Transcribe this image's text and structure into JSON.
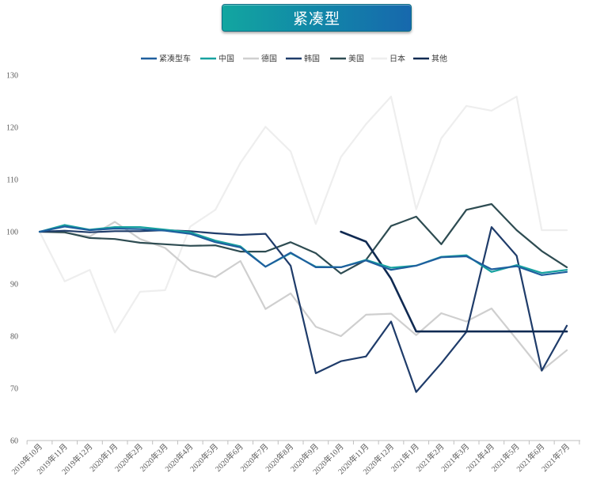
{
  "chart_data": {
    "type": "line",
    "title": "紧凑型",
    "xlabel": "",
    "ylabel": "",
    "ylim": [
      60,
      130
    ],
    "yticks": [
      60,
      70,
      80,
      90,
      100,
      110,
      120,
      130
    ],
    "grid": false,
    "legend_position": "top",
    "categories": [
      "2019年10月",
      "2019年11月",
      "2019年12月",
      "2020年1月",
      "2020年2月",
      "2020年3月",
      "2020年4月",
      "2020年5月",
      "2020年6月",
      "2020年7月",
      "2020年8月",
      "2020年9月",
      "2020年10月",
      "2020年11月",
      "2020年12月",
      "2021年1月",
      "2021年2月",
      "2021年3月",
      "2021年4月",
      "2021年5月",
      "2021年6月",
      "2021年7月"
    ],
    "series": [
      {
        "name": "紧凑型车",
        "color": "#1f5f9e",
        "width": 2.2,
        "values": [
          100,
          101,
          100.3,
          100.6,
          100.5,
          100.2,
          99.6,
          98,
          97,
          93.3,
          96,
          93.2,
          93.2,
          94.5,
          92.7,
          93.5,
          95.1,
          95.3,
          92.8,
          93.4,
          91.7,
          92.3
        ]
      },
      {
        "name": "中国",
        "color": "#17a2a0",
        "width": 2.2,
        "values": [
          100,
          101.3,
          100.4,
          100.9,
          100.9,
          100.4,
          99.9,
          98.3,
          97.2,
          93.3,
          95.9,
          93.3,
          93.2,
          94.6,
          93.1,
          93.5,
          95.2,
          95.5,
          92.3,
          93.6,
          92.1,
          92.7
        ]
      },
      {
        "name": "德国",
        "color": "#cfcfcf",
        "width": 2.2,
        "values": [
          100,
          99.8,
          99.1,
          101.9,
          98.6,
          96.9,
          92.7,
          91.3,
          94.4,
          85.2,
          88.2,
          81.8,
          80,
          84.1,
          84.3,
          80.2,
          84.4,
          82.8,
          85.3,
          79.4,
          73.4,
          77.3
        ]
      },
      {
        "name": "韩国",
        "color": "#1f3c6a",
        "width": 2.2,
        "values": [
          100,
          100.2,
          99.9,
          100.1,
          100.1,
          100.3,
          100.1,
          99.7,
          99.4,
          99.6,
          93.5,
          72.9,
          75.2,
          76.1,
          82.8,
          69.3,
          74.8,
          80.8,
          100.9,
          95.4,
          73.4,
          82
        ]
      },
      {
        "name": "美国",
        "color": "#2e4c52",
        "width": 2.2,
        "values": [
          100,
          99.9,
          98.8,
          98.6,
          97.9,
          97.6,
          97.3,
          97.4,
          96.2,
          96.2,
          98,
          95.9,
          92,
          94.6,
          101.1,
          102.9,
          97.6,
          104.2,
          105.3,
          100.3,
          96.3,
          93.2
        ]
      },
      {
        "name": "日本",
        "color": "#eeeeee",
        "width": 2.2,
        "values": [
          100,
          90.5,
          92.7,
          80.7,
          88.5,
          88.8,
          101,
          104.2,
          113.2,
          120.1,
          115.4,
          101.5,
          114.3,
          120.6,
          125.9,
          104.3,
          117.9,
          124.1,
          123.2,
          125.9,
          100.3,
          100.3
        ]
      },
      {
        "name": "其他",
        "color": "#102a52",
        "width": 2.6,
        "values": [
          null,
          null,
          null,
          null,
          null,
          null,
          null,
          null,
          null,
          null,
          null,
          null,
          100,
          98.1,
          91,
          80.9,
          80.9,
          80.9,
          80.9,
          80.9,
          80.9,
          80.9
        ]
      }
    ]
  }
}
